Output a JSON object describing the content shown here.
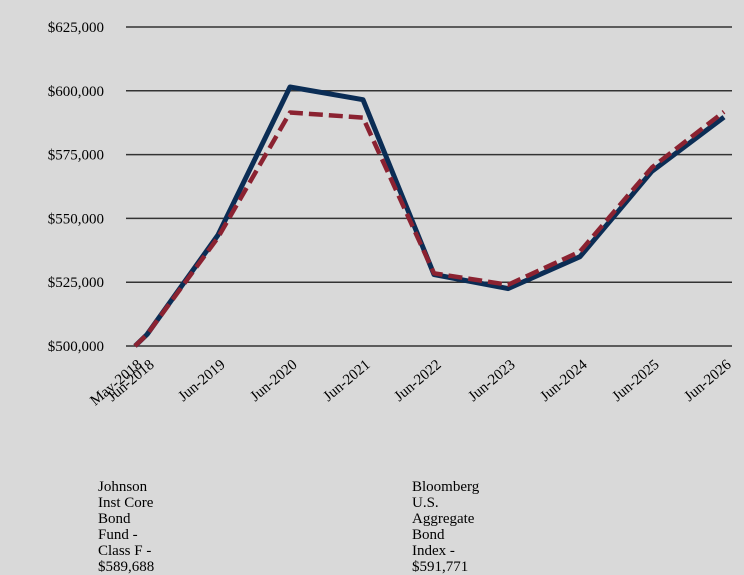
{
  "chart_data": {
    "type": "line",
    "categories": [
      "May-2018",
      "Jun-2018",
      "Jun-2019",
      "Jun-2020",
      "Jun-2021",
      "Jun-2022",
      "Jun-2023",
      "Jun-2024",
      "Jun-2025",
      "Jun-2026"
    ],
    "series": [
      {
        "name": "Johnson Inst Core Bond Fund - Class F - $589,688",
        "values": [
          500000,
          504500,
          543500,
          601500,
          596500,
          528000,
          522500,
          535000,
          568500,
          589688
        ],
        "color": "#0b2d55",
        "style": "solid"
      },
      {
        "name": "Bloomberg U.S. Aggregate Bond Index - $591,771",
        "values": [
          500000,
          504500,
          542500,
          591500,
          589500,
          528500,
          524000,
          537000,
          570000,
          591771
        ],
        "color": "#8b2231",
        "style": "dashed"
      }
    ],
    "ylim": [
      500000,
      625000
    ],
    "yticks": [
      500000,
      525000,
      550000,
      575000,
      600000,
      625000
    ],
    "ytick_labels": [
      "$500,000",
      "$525,000",
      "$550,000",
      "$575,000",
      "$600,000",
      "$625,000"
    ],
    "grid": true,
    "legend_position": "bottom",
    "title": "",
    "xlabel": "",
    "ylabel": ""
  },
  "legend": {
    "fund_line1": "Johnson Inst Core Bond Fund -",
    "fund_line2": "Class F - $589,688",
    "index_line1": "Bloomberg U.S. Aggregate Bond",
    "index_line2": "Index - $591,771"
  }
}
